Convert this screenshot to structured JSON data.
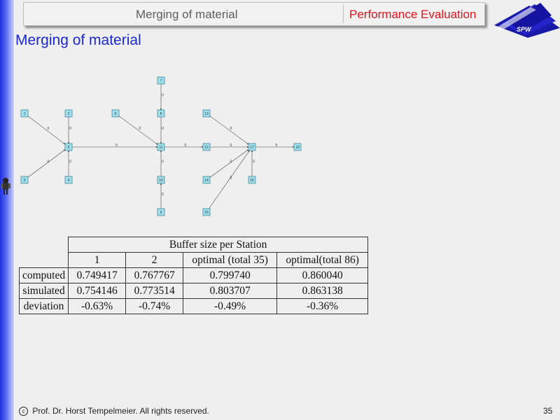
{
  "header": {
    "left_title": "Merging of material",
    "right_title": "Performance Evaluation"
  },
  "logo": {
    "text": "SPW"
  },
  "title": "Merging of material",
  "diagram": {
    "nodes": [
      "1",
      "2",
      "3",
      "4",
      "5",
      "6",
      "7",
      "8",
      "9",
      "10",
      "11",
      "12",
      "13",
      "14",
      "15",
      "16",
      "17",
      "18"
    ],
    "edges": [
      {
        "from": "1",
        "to": "5",
        "label": "0"
      },
      {
        "from": "2",
        "to": "5",
        "label": "0"
      },
      {
        "from": "3",
        "to": "5",
        "label": "0"
      },
      {
        "from": "4",
        "to": "5",
        "label": "0"
      },
      {
        "from": "5",
        "to": "11",
        "label": "0"
      },
      {
        "from": "6",
        "to": "11",
        "label": "0"
      },
      {
        "from": "7",
        "to": "8",
        "label": "0"
      },
      {
        "from": "8",
        "to": "11",
        "label": "0"
      },
      {
        "from": "10",
        "to": "11",
        "label": "0"
      },
      {
        "from": "9",
        "to": "10",
        "label": "0"
      },
      {
        "from": "11",
        "to": "12",
        "label": "0"
      },
      {
        "from": "12",
        "to": "17",
        "label": "0"
      },
      {
        "from": "13",
        "to": "17",
        "label": "0"
      },
      {
        "from": "14",
        "to": "17",
        "label": "0"
      },
      {
        "from": "15",
        "to": "17",
        "label": "0"
      },
      {
        "from": "16",
        "to": "17",
        "label": "0"
      },
      {
        "from": "17",
        "to": "18",
        "label": "0"
      }
    ]
  },
  "table": {
    "group_header": "Buffer size per Station",
    "columns": [
      "1",
      "2",
      "optimal (total 35)",
      "optimal(total 86)"
    ],
    "rows": [
      {
        "label": "computed",
        "values": [
          "0.749417",
          "0.767767",
          "0.799740",
          "0.860040"
        ]
      },
      {
        "label": "simulated",
        "values": [
          "0.754146",
          "0.773514",
          "0.803707",
          "0.863138"
        ]
      },
      {
        "label": "deviation",
        "values": [
          "-0.63%",
          "-0.74%",
          "-0.49%",
          "-0.36%"
        ]
      }
    ]
  },
  "footer": {
    "copyright_symbol": "c",
    "text": "Prof. Dr. Horst Tempelmeier. All rights reserved.",
    "page": "35"
  }
}
